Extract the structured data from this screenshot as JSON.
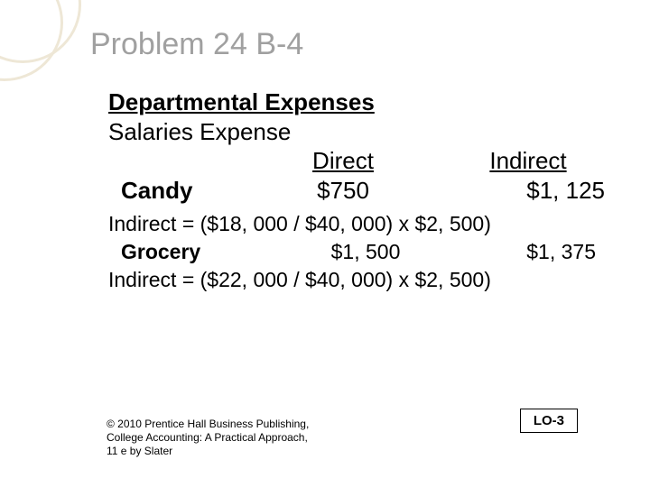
{
  "title": "Problem 24 B-4",
  "section_heading": "Departmental Expenses",
  "subheading": "Salaries Expense",
  "columns": {
    "direct": "Direct",
    "indirect": "Indirect"
  },
  "rows": {
    "candy": {
      "name": "Candy",
      "direct": "$750",
      "indirect": "$1, 125"
    },
    "grocery": {
      "name": "Grocery",
      "direct": "$1, 500",
      "indirect": "$1, 375"
    }
  },
  "formulas": {
    "candy_indirect": "Indirect = ($18, 000 / $40, 000) x $2, 500)",
    "grocery_indirect": "Indirect = ($22, 000 / $40, 000) x $2, 500)"
  },
  "copyright": "© 2010 Prentice Hall Business Publishing, College Accounting: A Practical Approach, 11 e by Slater",
  "lo_label": "LO-3",
  "colors": {
    "title_color": "#a0a0a0",
    "deco_ring": "#eee7d6",
    "text": "#000000",
    "background": "#ffffff"
  }
}
